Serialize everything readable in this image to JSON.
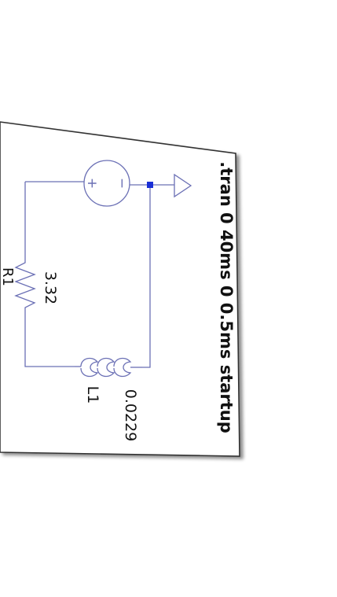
{
  "schematic": {
    "directive": ".tran 0 40ms 0 0.5ms startup",
    "resistor": {
      "value": "3.32",
      "partial_label": "R1"
    },
    "inductor": {
      "ref": "L1",
      "value": "0.0229"
    },
    "source": {
      "plus": "+",
      "minus": "−"
    }
  },
  "colors": {
    "wire": "#6b70b5",
    "junction": "#1a2fd6",
    "text": "#111111",
    "paper_shadow": "#555555"
  }
}
